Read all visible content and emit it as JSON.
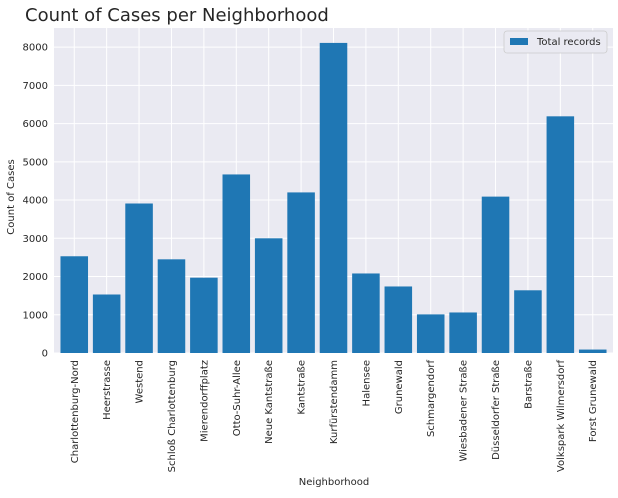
{
  "chart_data": {
    "type": "bar",
    "title": "Count of Cases per Neighborhood",
    "xlabel": "Neighborhood",
    "ylabel": "Count of Cases",
    "ylim": [
      0,
      8500
    ],
    "yticks": [
      0,
      1000,
      2000,
      3000,
      4000,
      5000,
      6000,
      7000,
      8000
    ],
    "grid": true,
    "legend_position": "top-right",
    "categories": [
      "Charlottenburg-Nord",
      "Heerstrasse",
      "Westend",
      "Schloß Charlottenburg",
      "Mierendorffplatz",
      "Otto-Suhr-Allee",
      "Neue Kantstraße",
      "Kantstraße",
      "Kurfürstendamm",
      "Halensee",
      "Grunewald",
      "Schmargendorf",
      "Wiesbadener Straße",
      "Düsseldorfer Straße",
      "Barstraße",
      "Volkspark Wilmersdorf",
      "Forst Grunewald"
    ],
    "series": [
      {
        "name": "Total records",
        "color": "#1f77b4",
        "values": [
          2530,
          1530,
          3910,
          2450,
          1970,
          4670,
          3000,
          4200,
          8110,
          2080,
          1740,
          1010,
          1060,
          4090,
          1640,
          6190,
          90
        ]
      }
    ]
  }
}
